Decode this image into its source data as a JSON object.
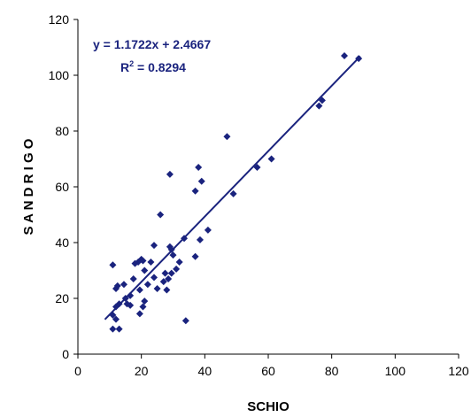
{
  "chart_data": {
    "type": "scatter",
    "xlabel": "SCHIO",
    "ylabel": "S A N D R I G O",
    "xlim": [
      0,
      120
    ],
    "ylim": [
      0,
      120
    ],
    "xticks": [
      "0",
      "20",
      "40",
      "60",
      "80",
      "100",
      "120"
    ],
    "yticks": [
      "0",
      "20",
      "40",
      "60",
      "80",
      "100",
      "120"
    ],
    "grid": false,
    "equation": "y = 1.1722x + 2.4667",
    "r2_prefix": "R",
    "r2_sup": "2",
    "r2_value": " = 0.8294",
    "trendline": {
      "slope": 1.1722,
      "intercept": 2.4667,
      "x_range": [
        8.5,
        89
      ]
    },
    "marker_color": "#1a237e",
    "line_color": "#1a237e",
    "points": [
      [
        84,
        107
      ],
      [
        88.5,
        106
      ],
      [
        77,
        91
      ],
      [
        76,
        89
      ],
      [
        61,
        70
      ],
      [
        56.5,
        67
      ],
      [
        47,
        78
      ],
      [
        49,
        57.5
      ],
      [
        38,
        67
      ],
      [
        39,
        62
      ],
      [
        37,
        58.5
      ],
      [
        29,
        64.5
      ],
      [
        41,
        44.5
      ],
      [
        38.5,
        41
      ],
      [
        37,
        35
      ],
      [
        34,
        12
      ],
      [
        33.5,
        41.5
      ],
      [
        26,
        50
      ],
      [
        24,
        39
      ],
      [
        23,
        33
      ],
      [
        24,
        27.5
      ],
      [
        25,
        23.5
      ],
      [
        27,
        26
      ],
      [
        27.5,
        29
      ],
      [
        28,
        23
      ],
      [
        28.5,
        27
      ],
      [
        29.5,
        37.5
      ],
      [
        29,
        38.5
      ],
      [
        29.5,
        29
      ],
      [
        30,
        35.5
      ],
      [
        31,
        30.5
      ],
      [
        32,
        33
      ],
      [
        20,
        34
      ],
      [
        20.5,
        33.5
      ],
      [
        19,
        33
      ],
      [
        18,
        32.5
      ],
      [
        17.5,
        27
      ],
      [
        19.5,
        23
      ],
      [
        21,
        30
      ],
      [
        22,
        25
      ],
      [
        21,
        19
      ],
      [
        20.5,
        17
      ],
      [
        19.5,
        14.5
      ],
      [
        16.5,
        17.5
      ],
      [
        15.5,
        18
      ],
      [
        15,
        20
      ],
      [
        16.5,
        21
      ],
      [
        14.5,
        25
      ],
      [
        13,
        18
      ],
      [
        12,
        23.5
      ],
      [
        12.5,
        24.5
      ],
      [
        11,
        32
      ],
      [
        12,
        17
      ],
      [
        11,
        14
      ],
      [
        12,
        12.5
      ],
      [
        11,
        9
      ],
      [
        13,
        9
      ]
    ]
  }
}
